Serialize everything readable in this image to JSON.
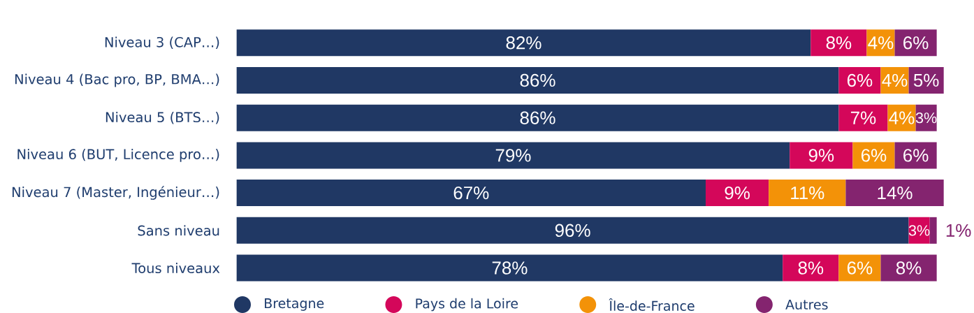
{
  "chart_data": {
    "type": "bar",
    "orientation": "horizontal",
    "stacked": true,
    "legend": "bottom",
    "categories": [
      "Niveau 3 (CAP…)",
      "Niveau 4 (Bac pro, BP, BMA…)",
      "Niveau 5 (BTS…)",
      "Niveau 6 (BUT, Licence pro…)",
      "Niveau 7 (Master, Ingénieur…)",
      "Sans niveau",
      "Tous niveaux"
    ],
    "series": [
      {
        "name": "Bretagne",
        "color": "#203864",
        "values": [
          82,
          86,
          86,
          79,
          67,
          96,
          78
        ],
        "value_labels": [
          "82%",
          "86%",
          "86%",
          "79%",
          "67%",
          "96%",
          "78%"
        ]
      },
      {
        "name": "Pays de la Loire",
        "color": "#d4075a",
        "values": [
          8,
          6,
          7,
          9,
          9,
          3,
          8
        ],
        "value_labels": [
          "8%",
          "6%",
          "7%",
          "9%",
          "9%",
          "3%",
          "8%"
        ]
      },
      {
        "name": "Île-de-France",
        "color": "#f39208",
        "values": [
          4,
          4,
          4,
          6,
          11,
          null,
          6
        ],
        "value_labels": [
          "4%",
          "4%",
          "4%",
          "6%",
          "11%",
          null,
          "6%"
        ]
      },
      {
        "name": "Autres",
        "color": "#84246f",
        "values": [
          6,
          5,
          3,
          6,
          14,
          1,
          8
        ],
        "value_labels": [
          "6%",
          "5%",
          "3%",
          "6%",
          "14%",
          "1%",
          "8%"
        ]
      }
    ]
  }
}
